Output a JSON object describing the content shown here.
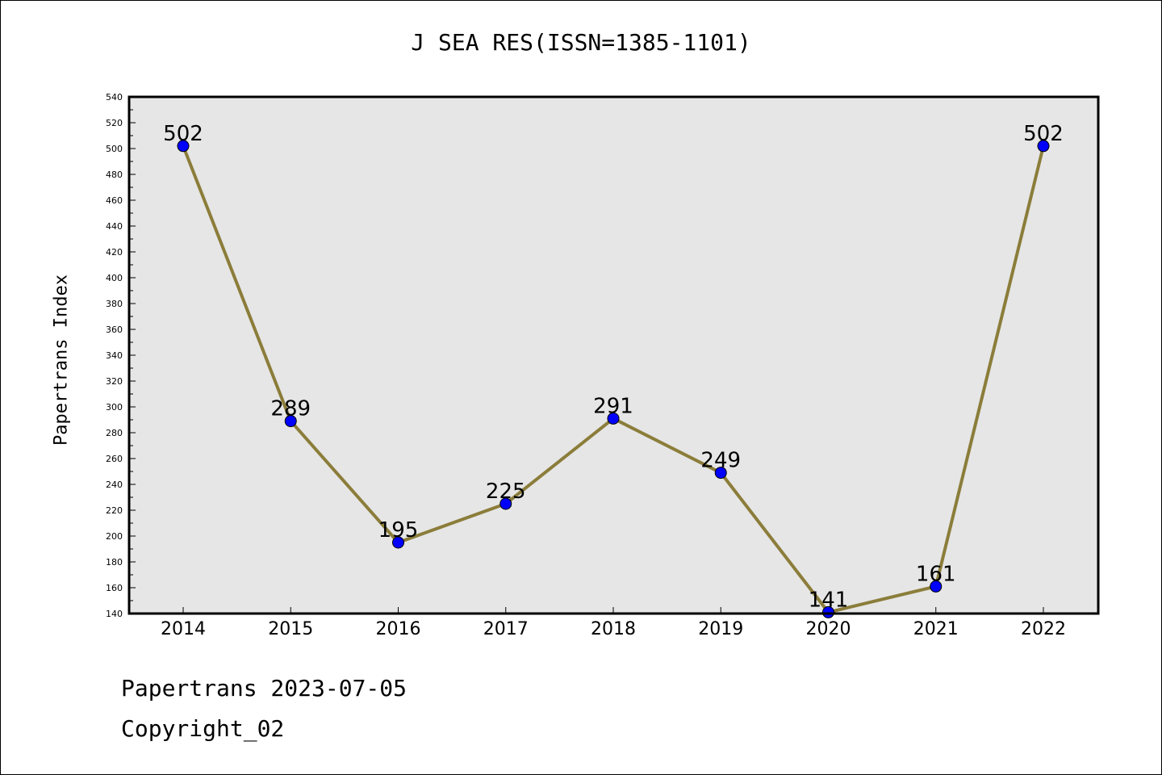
{
  "chart_data": {
    "type": "line",
    "title": "J SEA RES(ISSN=1385-1101)",
    "xlabel": "",
    "ylabel": "Papertrans Index",
    "categories": [
      "2014",
      "2015",
      "2016",
      "2017",
      "2018",
      "2019",
      "2020",
      "2021",
      "2022"
    ],
    "series": [
      {
        "values": [
          502,
          289,
          195,
          225,
          291,
          249,
          141,
          161,
          502
        ]
      }
    ],
    "ylim": [
      140,
      540
    ],
    "ytick_step": 20,
    "grid": false,
    "line_color": "#8B7D3A",
    "marker_color": "#0000FF",
    "plot_background": "#E6E6E6"
  },
  "footer": {
    "date_text": "Papertrans 2023-07-05",
    "copyright_text": "Copyright_02"
  }
}
